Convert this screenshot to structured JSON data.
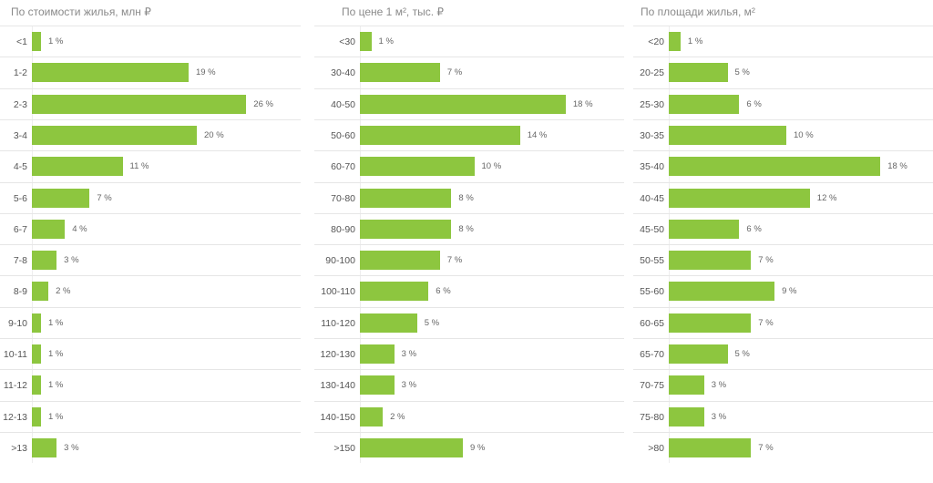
{
  "chart_data": [
    {
      "type": "bar",
      "title": "По стоимости жилья, млн ₽",
      "categories": [
        "<1",
        "1-2",
        "2-3",
        "3-4",
        "4-5",
        "5-6",
        "6-7",
        "7-8",
        "8-9",
        "9-10",
        "10-11",
        "11-12",
        "12-13",
        ">13"
      ],
      "values": [
        1,
        19,
        26,
        20,
        11,
        7,
        4,
        3,
        2,
        1,
        1,
        1,
        1,
        3
      ],
      "unit": "%"
    },
    {
      "type": "bar",
      "title": "По цене 1 м², тыс. ₽",
      "categories": [
        "<30",
        "30-40",
        "40-50",
        "50-60",
        "60-70",
        "70-80",
        "80-90",
        "90-100",
        "100-110",
        "110-120",
        "120-130",
        "130-140",
        "140-150",
        ">150"
      ],
      "values": [
        1,
        7,
        18,
        14,
        10,
        8,
        8,
        7,
        6,
        5,
        3,
        3,
        2,
        9
      ],
      "unit": "%"
    },
    {
      "type": "bar",
      "title": "По площади жилья, м²",
      "categories": [
        "<20",
        "20-25",
        "25-30",
        "30-35",
        "35-40",
        "40-45",
        "45-50",
        "50-55",
        "55-60",
        "60-65",
        "65-70",
        "70-75",
        "75-80",
        ">80"
      ],
      "values": [
        1,
        5,
        6,
        10,
        18,
        12,
        6,
        7,
        9,
        7,
        5,
        3,
        3,
        7
      ],
      "unit": "%"
    }
  ]
}
